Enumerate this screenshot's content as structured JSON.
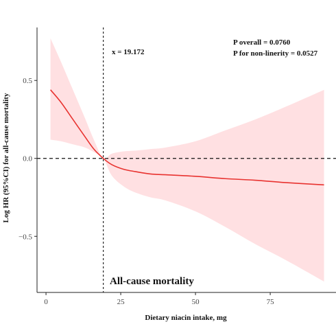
{
  "chart_data": {
    "type": "line",
    "title": "All-cause mortality",
    "xlabel": "Dietary niacin intake, mg",
    "ylabel": "Log HR (95%CI) for all-cause mortality",
    "xlim": [
      -3,
      97
    ],
    "ylim": [
      -0.86,
      0.84
    ],
    "x_ticks": [
      0,
      25,
      50,
      75
    ],
    "x_tick_labels": [
      "0",
      "25",
      "50",
      "75"
    ],
    "y_ticks": [
      0.5,
      0.0,
      -0.5
    ],
    "y_tick_labels": [
      "0.5",
      "0.0",
      "−0.5"
    ],
    "grid": false,
    "series": [
      {
        "color": "#e8322f",
        "x": [
          1.5,
          5,
          9,
          13,
          16,
          19.17,
          22,
          26,
          30,
          35,
          40,
          50,
          60,
          70,
          80,
          93
        ],
        "y": [
          0.44,
          0.36,
          0.25,
          0.14,
          0.06,
          0.0,
          -0.04,
          -0.07,
          -0.085,
          -0.1,
          -0.105,
          -0.115,
          -0.13,
          -0.14,
          -0.155,
          -0.17
        ],
        "ci_upper": [
          0.77,
          0.62,
          0.44,
          0.26,
          0.12,
          0.0,
          0.03,
          0.045,
          0.05,
          0.06,
          0.07,
          0.11,
          0.18,
          0.25,
          0.33,
          0.44
        ],
        "ci_lower": [
          0.12,
          0.11,
          0.09,
          0.07,
          0.04,
          0.0,
          -0.11,
          -0.18,
          -0.22,
          -0.25,
          -0.27,
          -0.34,
          -0.44,
          -0.55,
          -0.65,
          -0.79
        ],
        "ci_color": "#ffe0e2"
      }
    ],
    "reference_lines": [
      {
        "axis": "x",
        "value": 19.172,
        "style": "dashed",
        "label": "x = 19.172"
      },
      {
        "axis": "y",
        "value": 0.0,
        "style": "dashed"
      }
    ],
    "annotations": [
      "P overall = 0.0760",
      "P for non-linerity = 0.0527"
    ]
  }
}
